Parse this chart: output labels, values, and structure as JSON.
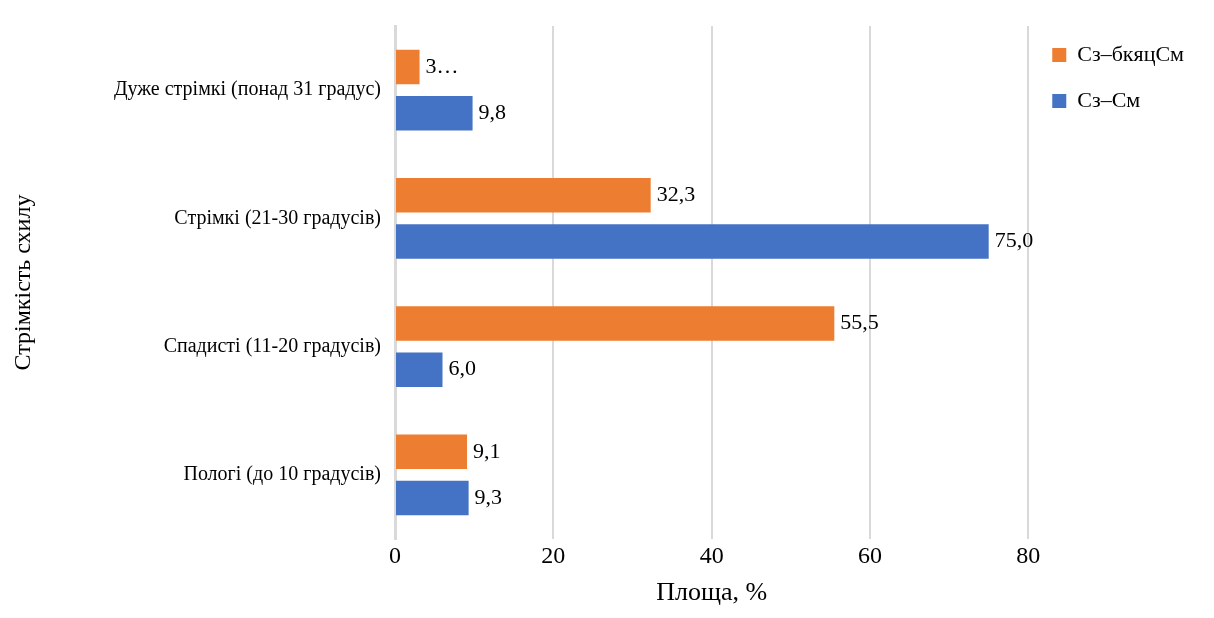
{
  "chart_data": {
    "type": "bar",
    "orientation": "horizontal",
    "xlabel": "Площа, %",
    "ylabel": "Стрімкість схилу",
    "categories": [
      "Дуже стрімкі (понад 31 градус)",
      "Стрімкі (21-30 градусів)",
      "Спадисті (11-20 градусів)",
      "Пологі (до 10 градусів)"
    ],
    "series": [
      {
        "name": "Сз–бкяцСм",
        "color": "#ed7d31",
        "values": [
          3.1,
          32.3,
          55.5,
          9.1
        ],
        "value_labels": [
          "3…",
          "32,3",
          "55,5",
          "9,1"
        ]
      },
      {
        "name": "Сз–См",
        "color": "#4472c4",
        "values": [
          9.8,
          75.0,
          6.0,
          9.3
        ],
        "value_labels": [
          "9,8",
          "75,0",
          "6,0",
          "9,3"
        ]
      }
    ],
    "xlim": [
      0,
      80
    ],
    "xticks": [
      0,
      20,
      40,
      60,
      80
    ],
    "grid": "x",
    "legend": "top right"
  }
}
